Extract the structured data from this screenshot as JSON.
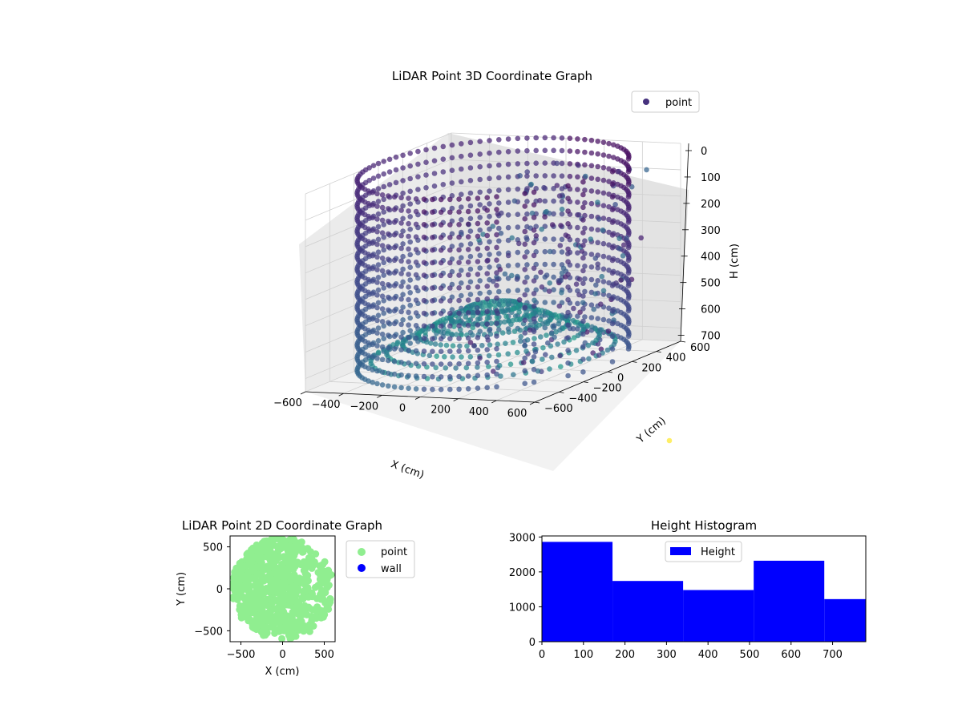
{
  "chart_data": [
    {
      "type": "scatter",
      "projection": "3d",
      "title": "LiDAR Point 3D Coordinate Graph",
      "xlabel": "X (cm)",
      "ylabel": "Y (cm)",
      "zlabel": "H (cm)",
      "xticks": [
        -600,
        -400,
        -200,
        0,
        200,
        400,
        600
      ],
      "yticks": [
        -600,
        -400,
        -200,
        0,
        200,
        400,
        600
      ],
      "zticks": [
        0,
        100,
        200,
        300,
        400,
        500,
        600,
        700
      ],
      "xlim": [
        -600,
        600
      ],
      "ylim": [
        -600,
        600
      ],
      "zlim": [
        750,
        0
      ],
      "z_inverted": true,
      "grid": true,
      "legend": {
        "placement": "upper-right",
        "entries": [
          "point"
        ]
      },
      "colormap": "viridis",
      "colors": {
        "ring": "#46327e",
        "ring_low": "#2f6b8e",
        "inner": "#21908c",
        "outlier": "#fde725"
      },
      "series": [
        {
          "name": "point",
          "description_shape": "cylindrical wall of points, radius about 600 cm, heights 0-750 cm, with a cluster of scattered interior points on the +X side",
          "samples": [
            {
              "x": -600,
              "y": 0,
              "z": 0
            },
            {
              "x": -600,
              "y": 0,
              "z": 700
            },
            {
              "x": 0,
              "y": 600,
              "z": 0
            },
            {
              "x": 0,
              "y": -600,
              "z": 700
            },
            {
              "x": 600,
              "y": 0,
              "z": 300
            },
            {
              "x": 300,
              "y": 100,
              "z": 200
            }
          ]
        }
      ]
    },
    {
      "type": "scatter",
      "title": "LiDAR Point 2D Coordinate Graph",
      "xlabel": "X (cm)",
      "ylabel": "Y (cm)",
      "xticks": [
        -500,
        0,
        500
      ],
      "yticks": [
        -500,
        0,
        500
      ],
      "xlim": [
        -630,
        630
      ],
      "ylim": [
        -630,
        630
      ],
      "legend": {
        "placement": "outside-right",
        "entries": [
          "point",
          "wall"
        ]
      },
      "series": [
        {
          "name": "point",
          "color": "#90ee90",
          "shape": "filled disk radius about 600 cm centred at origin, with gaps on the +X side"
        },
        {
          "name": "wall",
          "color": "#0000ff",
          "values": []
        }
      ]
    },
    {
      "type": "bar",
      "subtype": "histogram",
      "title": "Height Histogram",
      "xlabel": "",
      "ylabel": "",
      "bins": [
        {
          "from": 0,
          "to": 170,
          "count": 2860
        },
        {
          "from": 170,
          "to": 340,
          "count": 1740
        },
        {
          "from": 340,
          "to": 510,
          "count": 1480
        },
        {
          "from": 510,
          "to": 680,
          "count": 2320
        },
        {
          "from": 680,
          "to": 850,
          "count": 1220
        }
      ],
      "xlim": [
        0,
        780
      ],
      "ylim": [
        0,
        3030
      ],
      "xticks": [
        0,
        100,
        200,
        300,
        400,
        500,
        600,
        700
      ],
      "yticks": [
        0,
        1000,
        2000,
        3000
      ],
      "bar_color": "#0000ff",
      "legend": {
        "placement": "upper-center",
        "entries": [
          "Height"
        ]
      },
      "series": [
        {
          "name": "Height",
          "values": [
            2860,
            1740,
            1480,
            2320,
            1220
          ]
        }
      ]
    }
  ]
}
